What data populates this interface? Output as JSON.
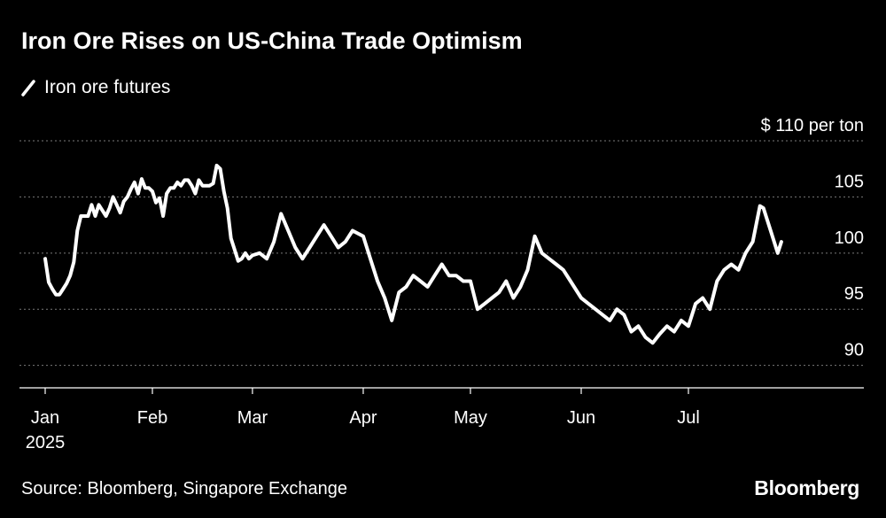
{
  "title": "Iron Ore Rises on US-China Trade Optimism",
  "legend": {
    "label": "Iron ore futures"
  },
  "source": "Source: Bloomberg, Singapore Exchange",
  "brand": "Bloomberg",
  "colors": {
    "background": "#000000",
    "line": "#ffffff",
    "grid": "#7a7a7a",
    "text": "#ffffff"
  },
  "chart_data": {
    "type": "line",
    "title": "Iron Ore Rises on US-China Trade Optimism",
    "ylabel": "",
    "xlabel": "",
    "ylim": [
      88,
      110
    ],
    "y_ticks": [
      {
        "value": 90,
        "label": "90"
      },
      {
        "value": 95,
        "label": "95"
      },
      {
        "value": 100,
        "label": "100"
      },
      {
        "value": 105,
        "label": "105"
      },
      {
        "value": 110,
        "label": "$ 110 per ton"
      }
    ],
    "x_ticks": [
      {
        "date": "2025-01-02",
        "label": "Jan",
        "sublabel": "2025"
      },
      {
        "date": "2025-02-01",
        "label": "Feb"
      },
      {
        "date": "2025-03-01",
        "label": "Mar"
      },
      {
        "date": "2025-04-01",
        "label": "Apr"
      },
      {
        "date": "2025-05-01",
        "label": "May"
      },
      {
        "date": "2025-06-01",
        "label": "Jun"
      },
      {
        "date": "2025-07-01",
        "label": "Jul"
      }
    ],
    "grid": true,
    "series": [
      {
        "name": "Iron ore futures",
        "points": [
          [
            "2025-01-02",
            99.5
          ],
          [
            "2025-01-03",
            97.4
          ],
          [
            "2025-01-04",
            96.8
          ],
          [
            "2025-01-05",
            96.3
          ],
          [
            "2025-01-06",
            96.3
          ],
          [
            "2025-01-07",
            96.8
          ],
          [
            "2025-01-08",
            97.3
          ],
          [
            "2025-01-09",
            98.0
          ],
          [
            "2025-01-10",
            99.2
          ],
          [
            "2025-01-11",
            102.0
          ],
          [
            "2025-01-12",
            103.3
          ],
          [
            "2025-01-13",
            103.3
          ],
          [
            "2025-01-14",
            103.3
          ],
          [
            "2025-01-15",
            104.3
          ],
          [
            "2025-01-16",
            103.3
          ],
          [
            "2025-01-17",
            104.3
          ],
          [
            "2025-01-18",
            103.8
          ],
          [
            "2025-01-19",
            103.3
          ],
          [
            "2025-01-20",
            104.0
          ],
          [
            "2025-01-21",
            105.0
          ],
          [
            "2025-01-22",
            104.3
          ],
          [
            "2025-01-23",
            103.6
          ],
          [
            "2025-01-24",
            104.6
          ],
          [
            "2025-01-25",
            105.0
          ],
          [
            "2025-01-26",
            105.7
          ],
          [
            "2025-01-27",
            106.3
          ],
          [
            "2025-01-28",
            105.3
          ],
          [
            "2025-01-29",
            106.6
          ],
          [
            "2025-01-30",
            105.8
          ],
          [
            "2025-01-31",
            105.8
          ],
          [
            "2025-02-01",
            105.5
          ],
          [
            "2025-02-02",
            104.5
          ],
          [
            "2025-02-03",
            104.9
          ],
          [
            "2025-02-04",
            103.3
          ],
          [
            "2025-02-05",
            105.3
          ],
          [
            "2025-02-06",
            105.8
          ],
          [
            "2025-02-07",
            105.8
          ],
          [
            "2025-02-08",
            106.3
          ],
          [
            "2025-02-09",
            106.0
          ],
          [
            "2025-02-10",
            106.5
          ],
          [
            "2025-02-11",
            106.5
          ],
          [
            "2025-02-12",
            106.0
          ],
          [
            "2025-02-13",
            105.3
          ],
          [
            "2025-02-14",
            106.5
          ],
          [
            "2025-02-15",
            106.0
          ],
          [
            "2025-02-16",
            106.0
          ],
          [
            "2025-02-17",
            106.0
          ],
          [
            "2025-02-18",
            106.2
          ],
          [
            "2025-02-19",
            107.8
          ],
          [
            "2025-02-20",
            107.5
          ],
          [
            "2025-02-21",
            105.5
          ],
          [
            "2025-02-22",
            104.0
          ],
          [
            "2025-02-23",
            101.3
          ],
          [
            "2025-02-24",
            100.3
          ],
          [
            "2025-02-25",
            99.3
          ],
          [
            "2025-02-26",
            99.5
          ],
          [
            "2025-02-27",
            100.0
          ],
          [
            "2025-02-28",
            99.5
          ],
          [
            "2025-03-01",
            99.8
          ],
          [
            "2025-03-03",
            100.0
          ],
          [
            "2025-03-05",
            99.5
          ],
          [
            "2025-03-07",
            101.0
          ],
          [
            "2025-03-09",
            103.5
          ],
          [
            "2025-03-11",
            102.0
          ],
          [
            "2025-03-13",
            100.5
          ],
          [
            "2025-03-15",
            99.5
          ],
          [
            "2025-03-17",
            100.5
          ],
          [
            "2025-03-19",
            101.5
          ],
          [
            "2025-03-21",
            102.5
          ],
          [
            "2025-03-23",
            101.5
          ],
          [
            "2025-03-25",
            100.5
          ],
          [
            "2025-03-27",
            101.0
          ],
          [
            "2025-03-29",
            102.0
          ],
          [
            "2025-04-01",
            101.5
          ],
          [
            "2025-04-03",
            99.5
          ],
          [
            "2025-04-05",
            97.5
          ],
          [
            "2025-04-07",
            96.0
          ],
          [
            "2025-04-09",
            94.0
          ],
          [
            "2025-04-11",
            96.5
          ],
          [
            "2025-04-13",
            97.0
          ],
          [
            "2025-04-15",
            98.0
          ],
          [
            "2025-04-17",
            97.5
          ],
          [
            "2025-04-19",
            97.0
          ],
          [
            "2025-04-21",
            98.0
          ],
          [
            "2025-04-23",
            99.0
          ],
          [
            "2025-04-25",
            98.0
          ],
          [
            "2025-04-27",
            98.0
          ],
          [
            "2025-04-29",
            97.5
          ],
          [
            "2025-05-01",
            97.5
          ],
          [
            "2025-05-03",
            95.0
          ],
          [
            "2025-05-05",
            95.5
          ],
          [
            "2025-05-07",
            96.0
          ],
          [
            "2025-05-09",
            96.5
          ],
          [
            "2025-05-11",
            97.5
          ],
          [
            "2025-05-13",
            96.0
          ],
          [
            "2025-05-15",
            97.0
          ],
          [
            "2025-05-17",
            98.5
          ],
          [
            "2025-05-19",
            101.5
          ],
          [
            "2025-05-21",
            100.0
          ],
          [
            "2025-05-23",
            99.5
          ],
          [
            "2025-05-25",
            99.0
          ],
          [
            "2025-05-27",
            98.5
          ],
          [
            "2025-05-29",
            97.5
          ],
          [
            "2025-06-01",
            96.0
          ],
          [
            "2025-06-03",
            95.5
          ],
          [
            "2025-06-05",
            95.0
          ],
          [
            "2025-06-07",
            94.5
          ],
          [
            "2025-06-09",
            94.0
          ],
          [
            "2025-06-11",
            95.0
          ],
          [
            "2025-06-13",
            94.5
          ],
          [
            "2025-06-15",
            93.0
          ],
          [
            "2025-06-17",
            93.5
          ],
          [
            "2025-06-19",
            92.5
          ],
          [
            "2025-06-21",
            92.0
          ],
          [
            "2025-06-23",
            92.8
          ],
          [
            "2025-06-25",
            93.5
          ],
          [
            "2025-06-27",
            93.0
          ],
          [
            "2025-06-29",
            94.0
          ],
          [
            "2025-07-01",
            93.5
          ],
          [
            "2025-07-03",
            95.5
          ],
          [
            "2025-07-05",
            96.0
          ],
          [
            "2025-07-07",
            95.0
          ],
          [
            "2025-07-09",
            97.5
          ],
          [
            "2025-07-11",
            98.5
          ],
          [
            "2025-07-13",
            99.0
          ],
          [
            "2025-07-15",
            98.5
          ],
          [
            "2025-07-17",
            100.0
          ],
          [
            "2025-07-19",
            101.0
          ],
          [
            "2025-07-21",
            104.2
          ],
          [
            "2025-07-22",
            104.0
          ],
          [
            "2025-07-24",
            102.0
          ],
          [
            "2025-07-26",
            100.0
          ],
          [
            "2025-07-27",
            101.0
          ]
        ]
      }
    ]
  }
}
